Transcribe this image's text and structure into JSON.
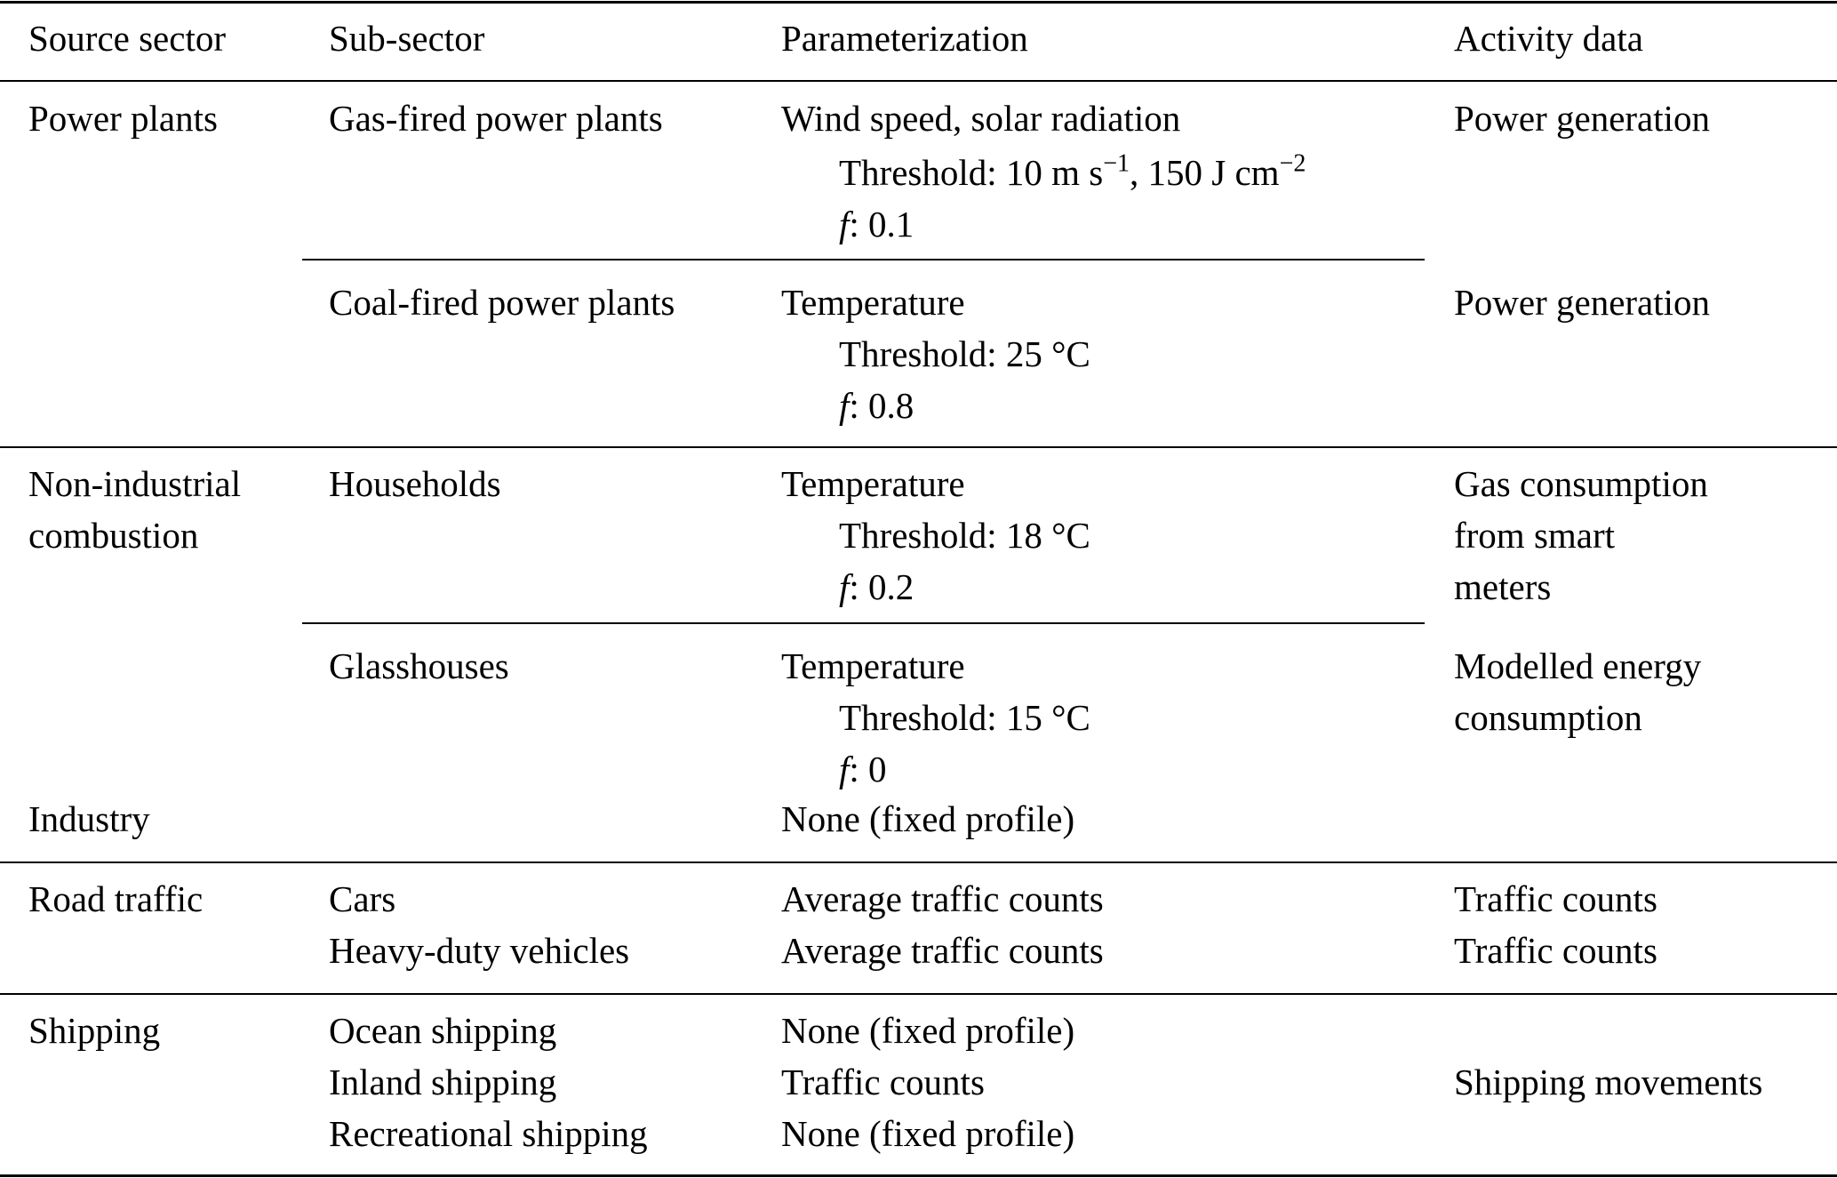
{
  "headers": [
    "Source sector",
    "Sub-sector",
    "Parameterization",
    "Activity data"
  ],
  "rows": {
    "power_plants": {
      "sector": "Power plants",
      "gas": {
        "sub": "Gas-fired power plants",
        "param": "Wind speed, solar radiation",
        "threshold_prefix": "Threshold: 10 m s",
        "exp1": "−1",
        "threshold_mid": ", 150 J cm",
        "exp2": "−2",
        "f_label": "f",
        "f_value": ": 0.1",
        "activity": "Power generation"
      },
      "coal": {
        "sub": "Coal-fired power plants",
        "param": "Temperature",
        "threshold": "Threshold: 25 °C",
        "f_label": "f",
        "f_value": ": 0.8",
        "activity": "Power generation"
      }
    },
    "non_industrial": {
      "sector_line1": "Non-industrial",
      "sector_line2": "combustion",
      "households": {
        "sub": "Households",
        "param": "Temperature",
        "threshold": "Threshold: 18 °C",
        "f_label": "f",
        "f_value": ": 0.2",
        "activity": [
          "Gas consumption",
          "from smart",
          "meters"
        ]
      },
      "glasshouses": {
        "sub": "Glasshouses",
        "param": "Temperature",
        "threshold": "Threshold: 15 °C",
        "f_label": "f",
        "f_value": ": 0",
        "activity": [
          "Modelled energy",
          "consumption"
        ]
      }
    },
    "industry": {
      "sector": "Industry",
      "param": "None (fixed profile)"
    },
    "road": {
      "sector": "Road traffic",
      "cars": {
        "sub": "Cars",
        "param": "Average traffic counts",
        "activity": "Traffic counts"
      },
      "hdv": {
        "sub": "Heavy-duty vehicles",
        "param": "Average traffic counts",
        "activity": "Traffic counts"
      }
    },
    "shipping": {
      "sector": "Shipping",
      "ocean": {
        "sub": "Ocean shipping",
        "param": "None (fixed profile)"
      },
      "inland": {
        "sub": "Inland shipping",
        "param": "Traffic counts"
      },
      "recreational": {
        "sub": "Recreational shipping",
        "param": "None (fixed profile)"
      },
      "activity": "Shipping movements"
    }
  }
}
